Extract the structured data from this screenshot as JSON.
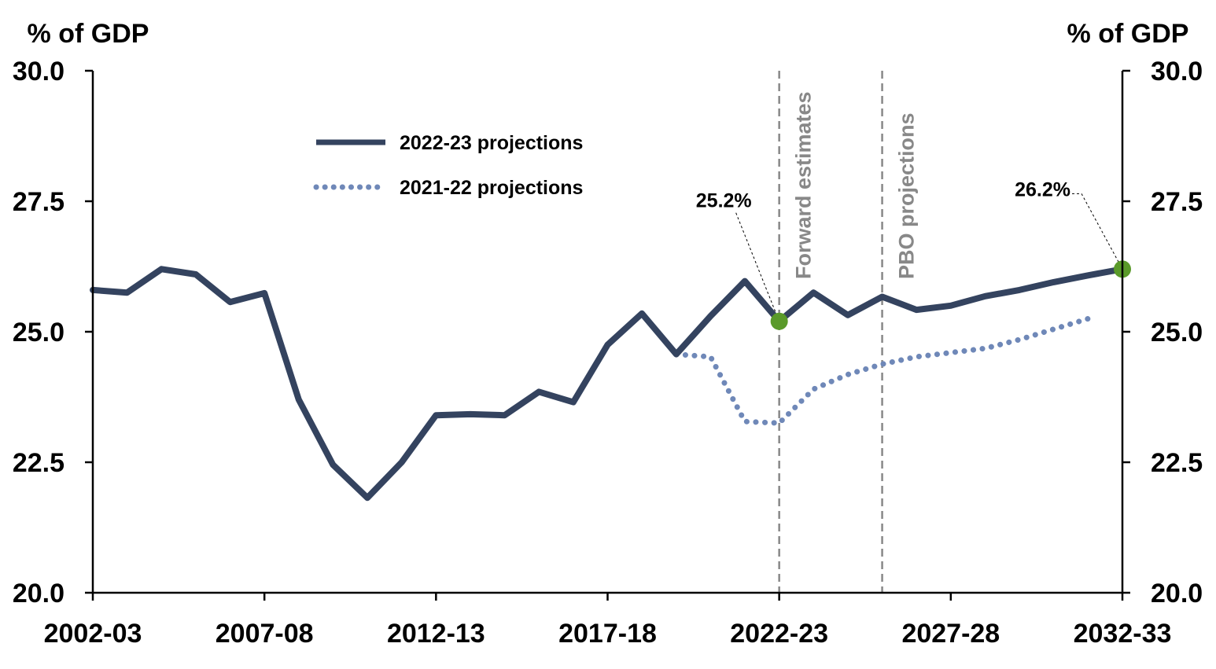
{
  "chart_data": {
    "type": "line",
    "left_unit_label": "% of GDP",
    "right_unit_label": "% of GDP",
    "ylim": [
      20.0,
      30.0
    ],
    "y_ticks": [
      "20.0",
      "22.5",
      "25.0",
      "27.5",
      "30.0"
    ],
    "x_range": [
      2002,
      2032
    ],
    "x_tick_labels": [
      {
        "year": 2002,
        "label": "2002-03"
      },
      {
        "year": 2007,
        "label": "2007-08"
      },
      {
        "year": 2012,
        "label": "2012-13"
      },
      {
        "year": 2017,
        "label": "2017-18"
      },
      {
        "year": 2022,
        "label": "2022-23"
      },
      {
        "year": 2027,
        "label": "2027-28"
      },
      {
        "year": 2032,
        "label": "2032-33"
      }
    ],
    "grid": false,
    "legend_position": "top-left",
    "series": [
      {
        "name": "2022-23 projections",
        "style": "solid",
        "color": "#34435f",
        "points": [
          [
            2002,
            25.8
          ],
          [
            2003,
            25.75
          ],
          [
            2004,
            26.2
          ],
          [
            2005,
            26.1
          ],
          [
            2006,
            25.57
          ],
          [
            2007,
            25.74
          ],
          [
            2008,
            23.7
          ],
          [
            2009,
            22.45
          ],
          [
            2010,
            21.82
          ],
          [
            2011,
            22.5
          ],
          [
            2012,
            23.4
          ],
          [
            2013,
            23.42
          ],
          [
            2014,
            23.4
          ],
          [
            2015,
            23.85
          ],
          [
            2016,
            23.65
          ],
          [
            2017,
            24.75
          ],
          [
            2018,
            25.35
          ],
          [
            2019,
            24.57
          ],
          [
            2020,
            25.3
          ],
          [
            2021,
            25.97
          ],
          [
            2022,
            25.2
          ],
          [
            2023,
            25.75
          ],
          [
            2024,
            25.32
          ],
          [
            2025,
            25.67
          ],
          [
            2026,
            25.42
          ],
          [
            2027,
            25.5
          ],
          [
            2028,
            25.68
          ],
          [
            2029,
            25.8
          ],
          [
            2030,
            25.95
          ],
          [
            2031,
            26.08
          ],
          [
            2032,
            26.2
          ]
        ]
      },
      {
        "name": "2021-22 projections",
        "style": "dotted",
        "color": "#6f88b8",
        "points": [
          [
            2019,
            24.57
          ],
          [
            2020,
            24.52
          ],
          [
            2021,
            23.28
          ],
          [
            2022,
            23.25
          ],
          [
            2023,
            23.9
          ],
          [
            2024,
            24.18
          ],
          [
            2025,
            24.38
          ],
          [
            2026,
            24.52
          ],
          [
            2027,
            24.6
          ],
          [
            2028,
            24.68
          ],
          [
            2029,
            24.85
          ],
          [
            2030,
            25.05
          ],
          [
            2031,
            25.25
          ]
        ]
      }
    ],
    "vertical_lines": [
      {
        "x": 2022,
        "label": "Forward estimates"
      },
      {
        "x": 2025,
        "label": "PBO projections"
      }
    ],
    "annotations": [
      {
        "x": 2022,
        "y": 25.2,
        "label": "25.2%"
      },
      {
        "x": 2032,
        "y": 26.2,
        "label": "26.2%"
      }
    ],
    "marker_color": "#5a9a2a"
  }
}
